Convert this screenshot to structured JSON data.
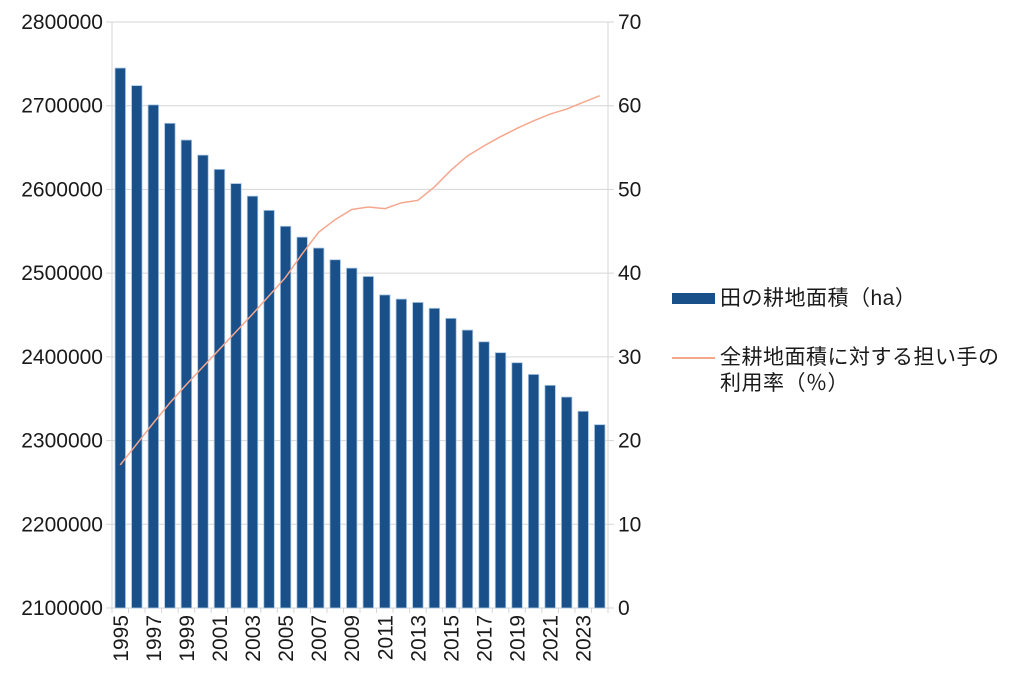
{
  "page": {
    "background": "#FFFFFF",
    "text_color": "#1A1A1A",
    "grid_color": "#D6D6D6"
  },
  "chart_data": {
    "type": "combo",
    "title": "",
    "grid": "horizontal",
    "legend_position": "right",
    "categories": [
      1995,
      1996,
      1997,
      1998,
      1999,
      2000,
      2001,
      2002,
      2003,
      2004,
      2005,
      2006,
      2007,
      2008,
      2009,
      2010,
      2011,
      2012,
      2013,
      2014,
      2015,
      2016,
      2017,
      2018,
      2019,
      2020,
      2021,
      2022,
      2023,
      2024
    ],
    "x_axis": {
      "tick_label_every": 2,
      "label_rotation_deg": -90,
      "visible_labels": [
        "1995",
        "1997",
        "1999",
        "2001",
        "2003",
        "2005",
        "2007",
        "2009",
        "2011",
        "2013",
        "2015",
        "2017",
        "2019",
        "2021",
        "2023"
      ]
    },
    "axis_left": {
      "min": 2100000,
      "max": 2800000,
      "step": 100000
    },
    "axis_right": {
      "min": 0,
      "max": 70,
      "step": 10
    },
    "series": [
      {
        "name": "田の耕地面積（ha）",
        "type": "bar",
        "axis": "left",
        "color": "#1A5089",
        "border_color": "#A9C7E4",
        "values": [
          2745000,
          2724000,
          2701000,
          2679000,
          2659000,
          2641000,
          2624000,
          2607000,
          2592000,
          2575000,
          2556000,
          2543000,
          2530000,
          2516000,
          2506000,
          2496000,
          2474000,
          2469000,
          2465000,
          2458000,
          2446000,
          2432000,
          2418000,
          2405000,
          2393000,
          2379000,
          2366000,
          2352000,
          2335000,
          2319000
        ]
      },
      {
        "name": "全耕地面積に対する担い手の利用率（％）",
        "type": "line",
        "axis": "right",
        "color": "#F5A78E",
        "values": [
          17.1,
          19.6,
          22.1,
          24.5,
          26.7,
          28.8,
          30.9,
          33.0,
          35.1,
          37.3,
          39.5,
          42.3,
          44.9,
          46.4,
          47.6,
          47.9,
          47.7,
          48.4,
          48.7,
          50.3,
          52.3,
          54.0,
          55.2,
          56.3,
          57.3,
          58.2,
          59.0,
          59.6,
          60.4,
          61.2
        ]
      }
    ]
  },
  "legend": {
    "items": [
      {
        "label": "田の耕地面積（ha）"
      },
      {
        "label": "全耕地面積に対する担い手の利用率（％）"
      }
    ]
  }
}
